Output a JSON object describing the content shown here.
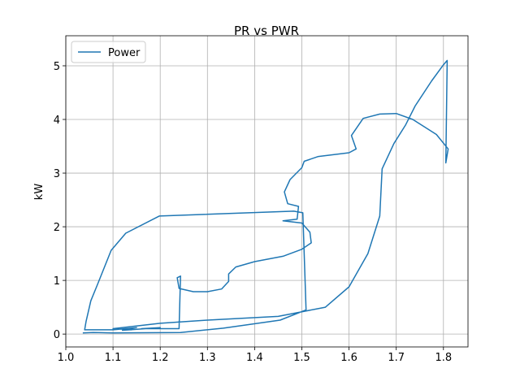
{
  "chart_data": {
    "type": "line",
    "title": "PR vs PWR",
    "ylabel": "kW",
    "x": [
      1.036,
      1.058,
      1.1,
      1.243,
      1.334,
      1.454,
      1.509,
      1.502,
      1.483,
      1.198,
      1.127,
      1.096,
      1.067,
      1.053,
      1.043,
      1.04,
      1.1,
      1.15,
      1.12,
      1.2,
      1.16,
      1.24,
      1.243,
      1.236,
      1.24,
      1.27,
      1.3,
      1.33,
      1.345,
      1.345,
      1.36,
      1.4,
      1.46,
      1.5,
      1.52,
      1.517,
      1.5,
      1.46,
      1.49,
      1.493,
      1.47,
      1.463,
      1.475,
      1.5,
      1.505,
      1.535,
      1.6,
      1.615,
      1.605,
      1.63,
      1.665,
      1.7,
      1.735,
      1.785,
      1.81,
      1.805,
      1.808,
      1.8,
      1.775,
      1.74,
      1.72,
      1.695,
      1.67,
      1.665,
      1.64,
      1.6,
      1.55,
      1.45,
      1.3,
      1.2,
      1.1,
      1.14
    ],
    "series": [
      {
        "name": "Power",
        "color": "#1f77b4",
        "values": [
          0.02,
          0.03,
          0.02,
          0.03,
          0.11,
          0.26,
          0.45,
          2.26,
          2.29,
          2.2,
          1.88,
          1.56,
          0.92,
          0.62,
          0.24,
          0.08,
          0.08,
          0.12,
          0.07,
          0.12,
          0.1,
          0.1,
          1.08,
          1.05,
          0.85,
          0.79,
          0.79,
          0.84,
          0.98,
          1.12,
          1.25,
          1.35,
          1.45,
          1.58,
          1.7,
          1.9,
          2.07,
          2.11,
          2.14,
          2.38,
          2.43,
          2.65,
          2.88,
          3.1,
          3.22,
          3.31,
          3.38,
          3.45,
          3.7,
          4.02,
          4.1,
          4.11,
          4.0,
          3.72,
          3.45,
          3.19,
          5.1,
          5.02,
          4.72,
          4.25,
          3.9,
          3.55,
          3.08,
          2.2,
          1.5,
          0.88,
          0.5,
          0.33,
          0.26,
          0.2,
          0.1,
          0.08
        ]
      }
    ],
    "xlim": [
      1.0,
      1.852
    ],
    "ylim": [
      -0.24,
      5.56
    ],
    "xticks": [
      {
        "value": 1.0,
        "label": "1.0"
      },
      1.1,
      1.2,
      1.3,
      1.4,
      1.5,
      1.6,
      1.7,
      1.8
    ],
    "yticks": [
      0,
      1,
      2,
      3,
      4,
      5
    ],
    "grid": true,
    "legend": "upper-left"
  }
}
